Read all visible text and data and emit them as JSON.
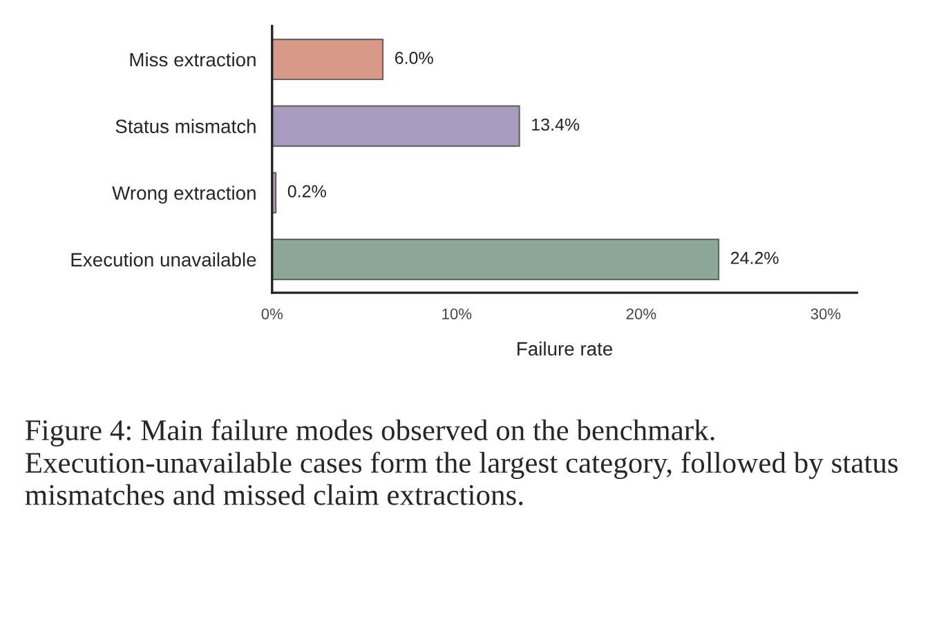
{
  "chart_data": {
    "type": "bar",
    "orientation": "horizontal",
    "categories": [
      "Miss extraction",
      "Status mismatch",
      "Wrong extraction",
      "Execution unavailable"
    ],
    "values": [
      6.0,
      13.4,
      0.2,
      24.2
    ],
    "colors": [
      "#d99a88",
      "#a89dbe",
      "#c49ab6",
      "#8ea898"
    ],
    "value_labels": [
      "6.0%",
      "13.4%",
      "0.2%",
      "24.2%"
    ],
    "xlabel": "Failure rate",
    "xlim": [
      0,
      31.7
    ],
    "xticks": [
      {
        "value": 0,
        "label": "0%"
      },
      {
        "value": 10,
        "label": "10%"
      },
      {
        "value": 20,
        "label": "20%"
      },
      {
        "value": 30,
        "label": "30%"
      }
    ],
    "grid": false,
    "legend": false,
    "annotations": [
      "Figure 4: Main failure modes observed on the benchmark. Execution-unavailable cases form the largest category, followed by status mismatches and missed claim extractions."
    ]
  }
}
